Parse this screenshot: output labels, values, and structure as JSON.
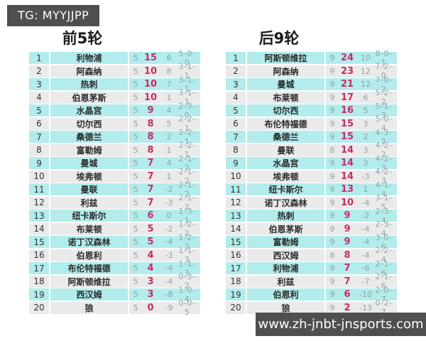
{
  "header": {
    "tg_label": "TG: MYYJJPP"
  },
  "footer": {
    "site_url": "www.zh-jnbt-jnsports.com"
  },
  "colors": {
    "row_odd": "#b2ecec",
    "row_even": "#eaeaea",
    "points_accent": "#c62d67",
    "muted_stat": "#91a3a3",
    "dark_box": "#4f4f4f"
  },
  "chart_data": [
    {
      "type": "table",
      "title": "前5轮",
      "rows": [
        {
          "rank": 1,
          "team": "利物浦",
          "played": 5,
          "points": 15,
          "gd": 6,
          "record": "5-0-0"
        },
        {
          "rank": 2,
          "team": "阿森纳",
          "played": 5,
          "points": 10,
          "gd": 8,
          "record": "3-1-1"
        },
        {
          "rank": 3,
          "team": "热刺",
          "played": 5,
          "points": 10,
          "gd": 7,
          "record": "3-1-1"
        },
        {
          "rank": 4,
          "team": "伯恩茅斯",
          "played": 5,
          "points": 10,
          "gd": 1,
          "record": "3-1-1"
        },
        {
          "rank": 5,
          "team": "水晶宫",
          "played": 5,
          "points": 9,
          "gd": 4,
          "record": "2-3-0"
        },
        {
          "rank": 6,
          "team": "切尔西",
          "played": 5,
          "points": 8,
          "gd": 5,
          "record": "2-2-1"
        },
        {
          "rank": 7,
          "team": "桑德兰",
          "played": 5,
          "points": 8,
          "gd": 2,
          "record": "2-2-1"
        },
        {
          "rank": 8,
          "team": "富勒姆",
          "played": 5,
          "points": 8,
          "gd": 1,
          "record": "2-2-1"
        },
        {
          "rank": 9,
          "team": "曼城",
          "played": 5,
          "points": 7,
          "gd": 4,
          "record": "2-1-2"
        },
        {
          "rank": 10,
          "team": "埃弗顿",
          "played": 5,
          "points": 7,
          "gd": 1,
          "record": "2-1-2"
        },
        {
          "rank": 11,
          "team": "曼联",
          "played": 5,
          "points": 7,
          "gd": -2,
          "record": "2-1-2"
        },
        {
          "rank": 12,
          "team": "利兹",
          "played": 5,
          "points": 7,
          "gd": -3,
          "record": "2-1-2"
        },
        {
          "rank": 13,
          "team": "纽卡斯尔",
          "played": 5,
          "points": 6,
          "gd": 0,
          "record": "1-3-1"
        },
        {
          "rank": 14,
          "team": "布莱顿",
          "played": 5,
          "points": 5,
          "gd": -2,
          "record": "1-2-2"
        },
        {
          "rank": 15,
          "team": "诺丁汉森林",
          "played": 5,
          "points": 5,
          "gd": -4,
          "record": "1-2-2"
        },
        {
          "rank": 16,
          "team": "伯恩利",
          "played": 5,
          "points": 4,
          "gd": -3,
          "record": "1-1-3"
        },
        {
          "rank": 17,
          "team": "布伦特福德",
          "played": 5,
          "points": 4,
          "gd": -4,
          "record": "1-1-3"
        },
        {
          "rank": 18,
          "team": "阿斯顿维拉",
          "played": 5,
          "points": 3,
          "gd": -4,
          "record": "0-3-2"
        },
        {
          "rank": 19,
          "team": "西汉姆",
          "played": 5,
          "points": 3,
          "gd": -8,
          "record": "1-0-4"
        },
        {
          "rank": 20,
          "team": "狼",
          "played": 5,
          "points": 0,
          "gd": -9,
          "record": "0-0-5"
        }
      ]
    },
    {
      "type": "table",
      "title": "后9轮",
      "rows": [
        {
          "rank": 1,
          "team": "阿斯顿维拉",
          "played": 9,
          "points": 24,
          "gd": 10,
          "record": "8-0-1"
        },
        {
          "rank": 2,
          "team": "阿森纳",
          "played": 9,
          "points": 23,
          "gd": 12,
          "record": "7-2-0"
        },
        {
          "rank": 3,
          "team": "曼城",
          "played": 9,
          "points": 21,
          "gd": 12,
          "record": "7-0-2"
        },
        {
          "rank": 4,
          "team": "布莱顿",
          "played": 9,
          "points": 17,
          "gd": 6,
          "record": "5-2-2"
        },
        {
          "rank": 5,
          "team": "切尔西",
          "played": 9,
          "points": 16,
          "gd": 5,
          "record": "5-1-3"
        },
        {
          "rank": 6,
          "team": "布伦特福德",
          "played": 9,
          "points": 15,
          "gd": 3,
          "record": "5-0-4"
        },
        {
          "rank": 7,
          "team": "桑德兰",
          "played": 9,
          "points": 15,
          "gd": 2,
          "record": "4-3-2"
        },
        {
          "rank": 8,
          "team": "曼联",
          "played": 8,
          "points": 14,
          "gd": 3,
          "record": "4-2-2"
        },
        {
          "rank": 9,
          "team": "水晶宫",
          "played": 9,
          "points": 14,
          "gd": 3,
          "record": "4-2-3"
        },
        {
          "rank": 10,
          "team": "埃弗顿",
          "played": 9,
          "points": 14,
          "gd": -3,
          "record": "4-2-3"
        },
        {
          "rank": 11,
          "team": "纽卡斯尔",
          "played": 9,
          "points": 13,
          "gd": 1,
          "record": "4-1-4"
        },
        {
          "rank": 12,
          "team": "诺丁汉森林",
          "played": 9,
          "points": 10,
          "gd": -4,
          "record": "3-1-5"
        },
        {
          "rank": 13,
          "team": "热刺",
          "played": 9,
          "points": 9,
          "gd": -2,
          "record": "2-3-4"
        },
        {
          "rank": 14,
          "team": "伯恩茅斯",
          "played": 9,
          "points": 9,
          "gd": -4,
          "record": "2-3-4"
        },
        {
          "rank": 15,
          "team": "富勒姆",
          "played": 9,
          "points": 9,
          "gd": -4,
          "record": "3-0-6"
        },
        {
          "rank": 16,
          "team": "西汉姆",
          "played": 8,
          "points": 8,
          "gd": -4,
          "record": "2-2-4"
        },
        {
          "rank": 17,
          "team": "利物浦",
          "played": 9,
          "points": 7,
          "gd": -6,
          "record": "2-1-6"
        },
        {
          "rank": 18,
          "team": "利兹",
          "played": 9,
          "points": 7,
          "gd": -7,
          "record": "2-1-6"
        },
        {
          "rank": 19,
          "team": "伯恩利",
          "played": 9,
          "points": 6,
          "gd": -10,
          "record": "2-0-7"
        },
        {
          "rank": 20,
          "team": "狼",
          "played": 9,
          "points": 2,
          "gd": -13,
          "record": "0-2-7"
        }
      ]
    }
  ]
}
